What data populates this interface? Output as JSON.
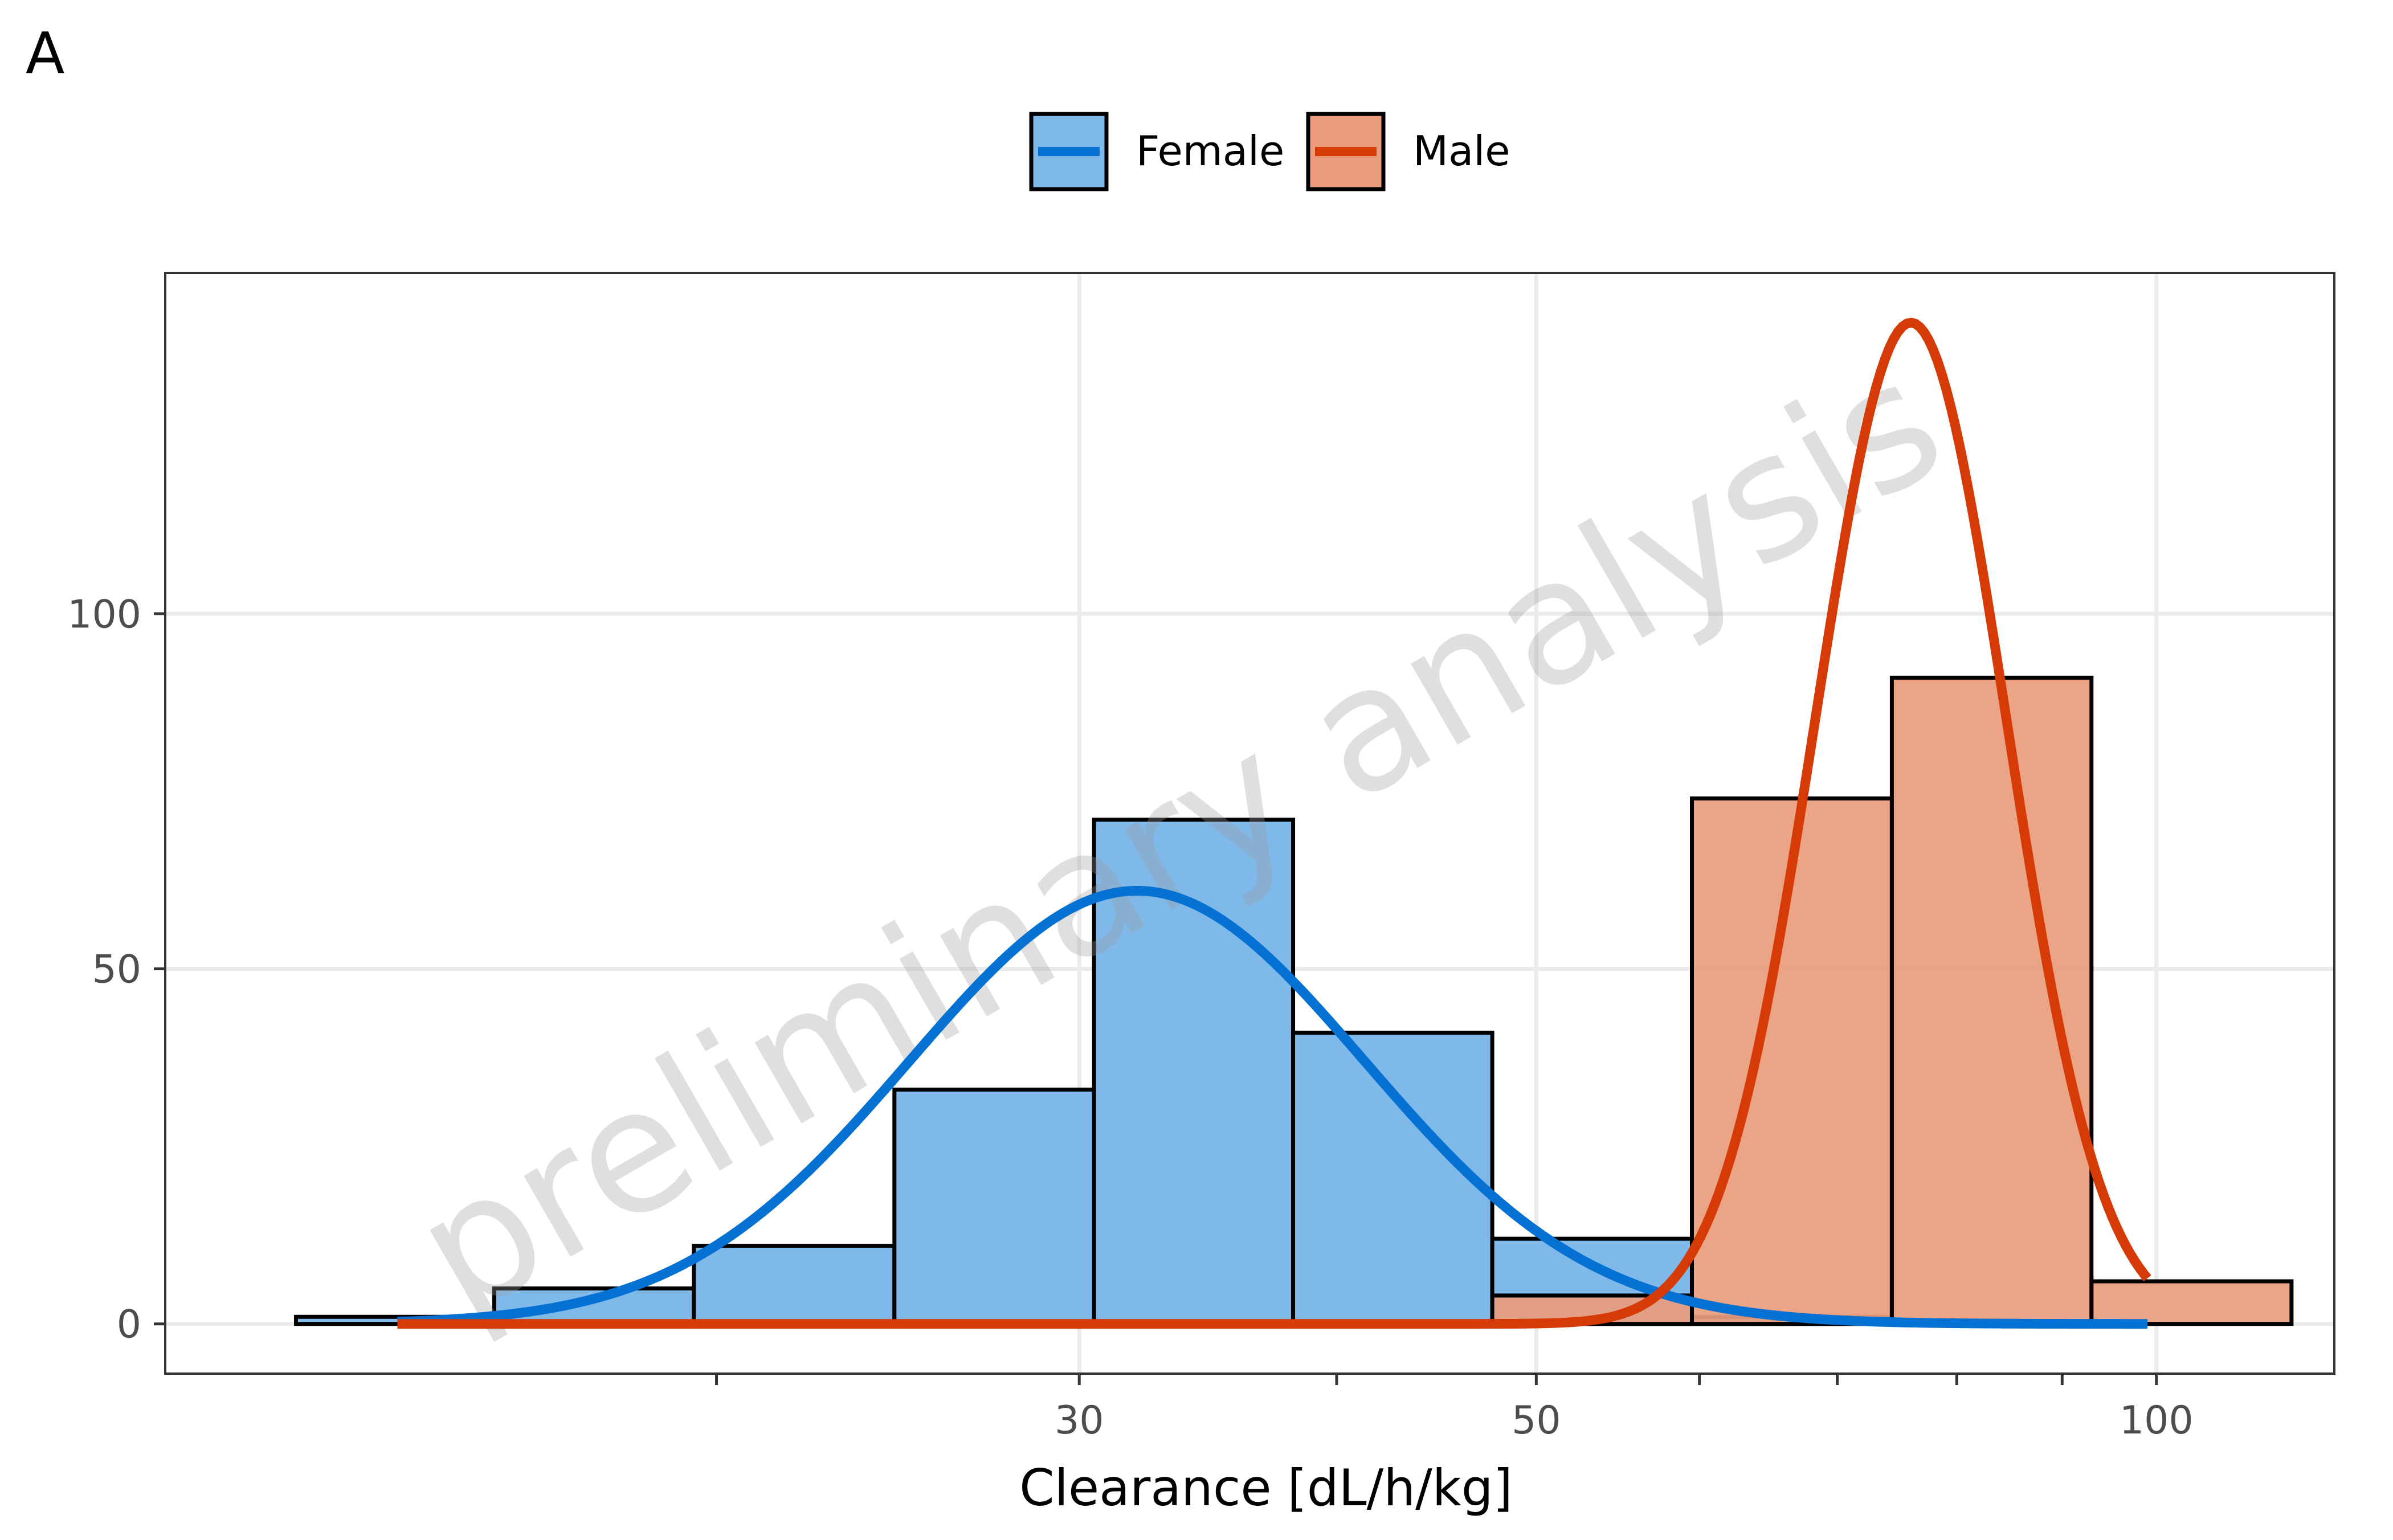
{
  "panel_label": "A",
  "watermark": "preliminary analysis",
  "chart_data": {
    "type": "bar",
    "xlabel": "Clearance [dL/h/kg]",
    "ylabel": "",
    "x_scale": "log",
    "xlim": [
      10.8,
      122
    ],
    "ylim": [
      -7,
      148
    ],
    "x_ticks": [
      {
        "value": 30,
        "label": "30"
      },
      {
        "value": 50,
        "label": "50"
      },
      {
        "value": 100,
        "label": "100"
      }
    ],
    "x_minor_ticks": [
      20,
      40,
      60,
      70,
      80,
      90
    ],
    "y_ticks": [
      {
        "value": 0,
        "label": "0"
      },
      {
        "value": 50,
        "label": "50"
      },
      {
        "value": 100,
        "label": "100"
      }
    ],
    "grid": true,
    "legend": {
      "position": "top"
    },
    "colors": {
      "Female_fill": "#7fb9ea",
      "Female_line": "#0571d3",
      "Male_fill": "#e99d7d",
      "Male_line": "#d63a06"
    },
    "series": [
      {
        "name": "Female",
        "bins": [
          {
            "x0": 12.5,
            "x1": 15.6,
            "count": 1
          },
          {
            "x0": 15.6,
            "x1": 19.5,
            "count": 5
          },
          {
            "x0": 19.5,
            "x1": 24.4,
            "count": 11
          },
          {
            "x0": 24.4,
            "x1": 30.5,
            "count": 33
          },
          {
            "x0": 30.5,
            "x1": 38.1,
            "count": 71
          },
          {
            "x0": 38.1,
            "x1": 47.6,
            "count": 41
          },
          {
            "x0": 47.6,
            "x1": 59.5,
            "count": 12
          },
          {
            "x0": 59.5,
            "x1": 74.4,
            "count": 1
          }
        ],
        "density_curve": {
          "mean": 32.0,
          "sd_log10": 0.1105,
          "peak": 61,
          "x_range": [
            14,
            99
          ]
        }
      },
      {
        "name": "Male",
        "bins": [
          {
            "x0": 47.6,
            "x1": 59.5,
            "count": 4
          },
          {
            "x0": 59.5,
            "x1": 74.4,
            "count": 74
          },
          {
            "x0": 74.4,
            "x1": 93.0,
            "count": 91
          },
          {
            "x0": 93.0,
            "x1": 116.3,
            "count": 6
          }
        ],
        "density_curve": {
          "mean": 76.0,
          "sd_log10": 0.0462,
          "peak": 141,
          "x_range": [
            14,
            99
          ]
        }
      }
    ]
  }
}
